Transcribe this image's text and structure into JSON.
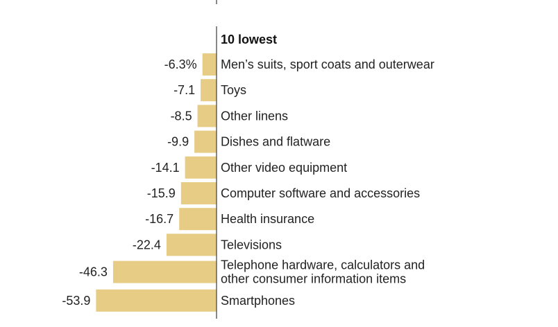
{
  "chart_data": {
    "type": "bar",
    "orientation": "horizontal",
    "section_title": "10 lowest",
    "categories": [
      "Men’s suits, sport coats and outerwear",
      "Toys",
      "Other linens",
      "Dishes and flatware",
      "Other video equipment",
      "Computer software and accessories",
      "Health insurance",
      "Televisions",
      "Telephone hardware, calculators and other consumer information items",
      "Smartphones"
    ],
    "category_lines": [
      [
        "Men’s suits, sport coats and outerwear"
      ],
      [
        "Toys"
      ],
      [
        "Other linens"
      ],
      [
        "Dishes and flatware"
      ],
      [
        "Other video equipment"
      ],
      [
        "Computer software and accessories"
      ],
      [
        "Health insurance"
      ],
      [
        "Televisions"
      ],
      [
        "Telephone hardware, calculators and",
        "other consumer information items"
      ],
      [
        "Smartphones"
      ]
    ],
    "values": [
      -6.3,
      -7.1,
      -8.5,
      -9.9,
      -14.1,
      -15.9,
      -16.7,
      -22.4,
      -46.3,
      -53.9
    ],
    "value_labels": [
      "-6.3%",
      "-7.1",
      "-8.5",
      "-9.9",
      "-14.1",
      "-15.9",
      "-16.7",
      "-22.4",
      "-46.3",
      "-53.9"
    ],
    "xlim": [
      -60,
      0
    ],
    "grid": false,
    "legend": "none"
  },
  "colors": {
    "bar": "#e6cc84",
    "axis": "#555555",
    "text": "#222222"
  }
}
